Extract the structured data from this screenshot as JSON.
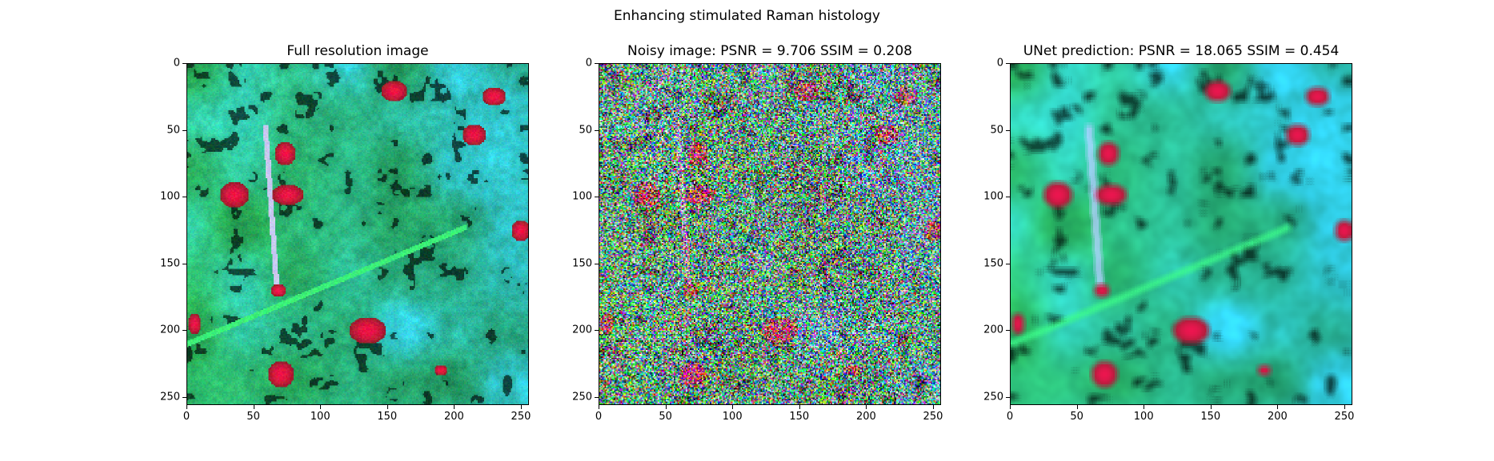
{
  "figure": {
    "title": "Enhancing stimulated Raman histology"
  },
  "panels": [
    {
      "id": "full",
      "title": "Full resolution image",
      "image": "full-resolution-tissue-image",
      "noise": "none"
    },
    {
      "id": "noisy",
      "title": "Noisy image: PSNR = 9.706 SSIM = 0.208",
      "image": "noisy-tissue-image",
      "noise": "heavy"
    },
    {
      "id": "unet",
      "title": "UNet prediction: PSNR = 18.065 SSIM = 0.454",
      "image": "unet-prediction-tissue-image",
      "noise": "smoothed"
    }
  ],
  "axes": {
    "x_ticks": [
      "0",
      "50",
      "100",
      "150",
      "200",
      "250"
    ],
    "y_ticks": [
      "0",
      "50",
      "100",
      "150",
      "200",
      "250"
    ],
    "range": [
      0,
      256
    ]
  },
  "colors": {
    "background": "#1f8f5a",
    "cyan": "#3fe6dc",
    "green": "#24e08a",
    "nuclei": "#ff2060",
    "dark": "#0c2418"
  }
}
